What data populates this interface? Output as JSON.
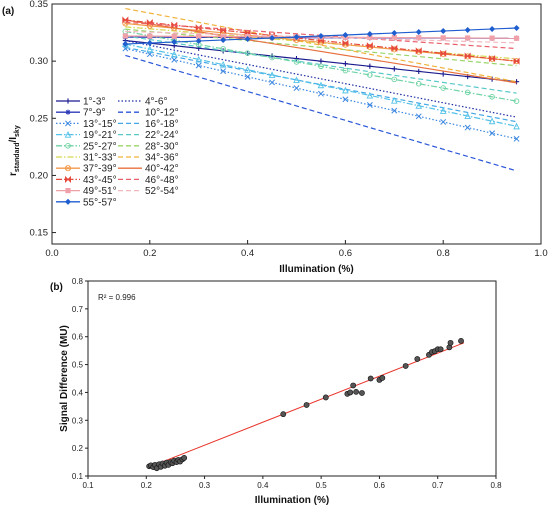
{
  "panels": {
    "a_label": "(a)",
    "b_label": "(b)"
  },
  "chart_data": [
    {
      "type": "line",
      "panel": "(a)",
      "xlabel": "Illumination (%)",
      "ylabel_main": "r",
      "ylabel_sub1": "standard",
      "ylabel_mid": "/I",
      "ylabel_sub2": "sky",
      "xlim": [
        0.0,
        1.0
      ],
      "ylim": [
        0.14,
        0.35
      ],
      "xticks": [
        0.0,
        0.2,
        0.4,
        0.6,
        0.8,
        1.0
      ],
      "xtick_labels": [
        "0.0",
        "0.2",
        "0.4",
        "0.6",
        "0.8",
        "1.0"
      ],
      "yticks": [
        0.15,
        0.2,
        0.25,
        0.3,
        0.35
      ],
      "ytick_labels": [
        "0.15",
        "0.20",
        "0.25",
        "0.30",
        "0.35"
      ],
      "grid": false,
      "legend_position": "left",
      "series": [
        {
          "name": "1°-3°",
          "start": [
            0.15,
            0.318
          ],
          "end": [
            0.95,
            0.282
          ],
          "color": "#1b1b8f",
          "dash": "solid",
          "marker": "plus"
        },
        {
          "name": "4°-6°",
          "start": [
            0.15,
            0.318
          ],
          "end": [
            0.95,
            0.251
          ],
          "color": "#1f2ea6",
          "dash": "dotted",
          "marker": "none"
        },
        {
          "name": "7°-9°",
          "start": [
            0.15,
            0.321
          ],
          "end": [
            0.95,
            0.32
          ],
          "color": "#2d3ab8",
          "dash": "solid",
          "marker": "star"
        },
        {
          "name": "10°-12°",
          "start": [
            0.15,
            0.305
          ],
          "end": [
            0.95,
            0.204
          ],
          "color": "#2a56d8",
          "dash": "dashed",
          "marker": "none"
        },
        {
          "name": "13°-15°",
          "start": [
            0.15,
            0.311
          ],
          "end": [
            0.95,
            0.232
          ],
          "color": "#3a86e0",
          "dash": "dotted",
          "marker": "x"
        },
        {
          "name": "16°-18°",
          "start": [
            0.15,
            0.312
          ],
          "end": [
            0.95,
            0.247
          ],
          "color": "#45a8e6",
          "dash": "dashed",
          "marker": "none"
        },
        {
          "name": "19°-21°",
          "start": [
            0.15,
            0.315
          ],
          "end": [
            0.95,
            0.243
          ],
          "color": "#54c2e8",
          "dash": "dashdot",
          "marker": "triangle"
        },
        {
          "name": "22°-24°",
          "start": [
            0.15,
            0.322
          ],
          "end": [
            0.95,
            0.272
          ],
          "color": "#58c9c8",
          "dash": "dashed",
          "marker": "none"
        },
        {
          "name": "25°-27°",
          "start": [
            0.15,
            0.326
          ],
          "end": [
            0.95,
            0.265
          ],
          "color": "#6fd3a4",
          "dash": "dashdot",
          "marker": "circle"
        },
        {
          "name": "28°-30°",
          "start": [
            0.15,
            0.328
          ],
          "end": [
            0.95,
            0.296
          ],
          "color": "#9ad66a",
          "dash": "dashed",
          "marker": "none"
        },
        {
          "name": "31°-33°",
          "start": [
            0.15,
            0.33
          ],
          "end": [
            0.95,
            0.302
          ],
          "color": "#d7d64e",
          "dash": "dashdot",
          "marker": "none"
        },
        {
          "name": "34°-36°",
          "start": [
            0.15,
            0.346
          ],
          "end": [
            0.95,
            0.282
          ],
          "color": "#f0b23a",
          "dash": "dashed",
          "marker": "none"
        },
        {
          "name": "37°-39°",
          "start": [
            0.15,
            0.333
          ],
          "end": [
            0.95,
            0.3
          ],
          "color": "#f29a4a",
          "dash": "solid",
          "marker": "circle-x"
        },
        {
          "name": "40°-42°",
          "start": [
            0.15,
            0.336
          ],
          "end": [
            0.95,
            0.281
          ],
          "color": "#e8703e",
          "dash": "solid",
          "marker": "none"
        },
        {
          "name": "43°-45°",
          "start": [
            0.15,
            0.336
          ],
          "end": [
            0.95,
            0.3
          ],
          "color": "#e64a3c",
          "dash": "dashdot",
          "marker": "bowtie"
        },
        {
          "name": "46°-48°",
          "start": [
            0.15,
            0.334
          ],
          "end": [
            0.95,
            0.311
          ],
          "color": "#e8606a",
          "dash": "dashed",
          "marker": "none"
        },
        {
          "name": "49°-51°",
          "start": [
            0.15,
            0.322
          ],
          "end": [
            0.95,
            0.32
          ],
          "color": "#f0a0a8",
          "dash": "solid",
          "marker": "square"
        },
        {
          "name": "52°-54°",
          "start": [
            0.15,
            0.326
          ],
          "end": [
            0.95,
            0.316
          ],
          "color": "#f2b8c0",
          "dash": "dashed",
          "marker": "none"
        },
        {
          "name": "55°-57°",
          "start": [
            0.15,
            0.315
          ],
          "end": [
            0.95,
            0.329
          ],
          "color": "#1f5ecf",
          "dash": "solid",
          "marker": "diamond"
        }
      ]
    },
    {
      "type": "scatter",
      "panel": "(b)",
      "xlabel": "Illumination (%)",
      "ylabel": "Signal Difference (MU)",
      "annotation": "R² = 0.996",
      "xlim": [
        0.1,
        0.8
      ],
      "ylim": [
        0.1,
        0.8
      ],
      "xticks": [
        0.1,
        0.2,
        0.3,
        0.4,
        0.5,
        0.6,
        0.7,
        0.8
      ],
      "xtick_labels": [
        "0.1",
        "0.2",
        "0.3",
        "0.4",
        "0.5",
        "0.6",
        "0.7",
        "0.8"
      ],
      "yticks": [
        0.1,
        0.2,
        0.3,
        0.4,
        0.5,
        0.6,
        0.7,
        0.8
      ],
      "ytick_labels": [
        "0.1",
        "0.2",
        "0.3",
        "0.4",
        "0.5",
        "0.6",
        "0.7",
        "0.8"
      ],
      "grid": false,
      "fit_line": {
        "x": [
          0.205,
          0.745
        ],
        "y": [
          0.132,
          0.578
        ],
        "color": "#e8352b"
      },
      "marker_color": "#555555",
      "points": [
        [
          0.205,
          0.135
        ],
        [
          0.208,
          0.138
        ],
        [
          0.212,
          0.132
        ],
        [
          0.215,
          0.14
        ],
        [
          0.218,
          0.128
        ],
        [
          0.222,
          0.142
        ],
        [
          0.225,
          0.133
        ],
        [
          0.228,
          0.145
        ],
        [
          0.232,
          0.137
        ],
        [
          0.235,
          0.148
        ],
        [
          0.238,
          0.14
        ],
        [
          0.242,
          0.15
        ],
        [
          0.245,
          0.146
        ],
        [
          0.248,
          0.155
        ],
        [
          0.252,
          0.15
        ],
        [
          0.255,
          0.158
        ],
        [
          0.258,
          0.152
        ],
        [
          0.262,
          0.16
        ],
        [
          0.265,
          0.165
        ],
        [
          0.435,
          0.322
        ],
        [
          0.475,
          0.355
        ],
        [
          0.508,
          0.382
        ],
        [
          0.545,
          0.395
        ],
        [
          0.55,
          0.4
        ],
        [
          0.555,
          0.425
        ],
        [
          0.56,
          0.402
        ],
        [
          0.57,
          0.398
        ],
        [
          0.585,
          0.45
        ],
        [
          0.6,
          0.445
        ],
        [
          0.605,
          0.452
        ],
        [
          0.645,
          0.495
        ],
        [
          0.665,
          0.52
        ],
        [
          0.685,
          0.535
        ],
        [
          0.69,
          0.545
        ],
        [
          0.695,
          0.548
        ],
        [
          0.7,
          0.555
        ],
        [
          0.705,
          0.555
        ],
        [
          0.72,
          0.562
        ],
        [
          0.722,
          0.578
        ],
        [
          0.74,
          0.585
        ]
      ]
    }
  ]
}
